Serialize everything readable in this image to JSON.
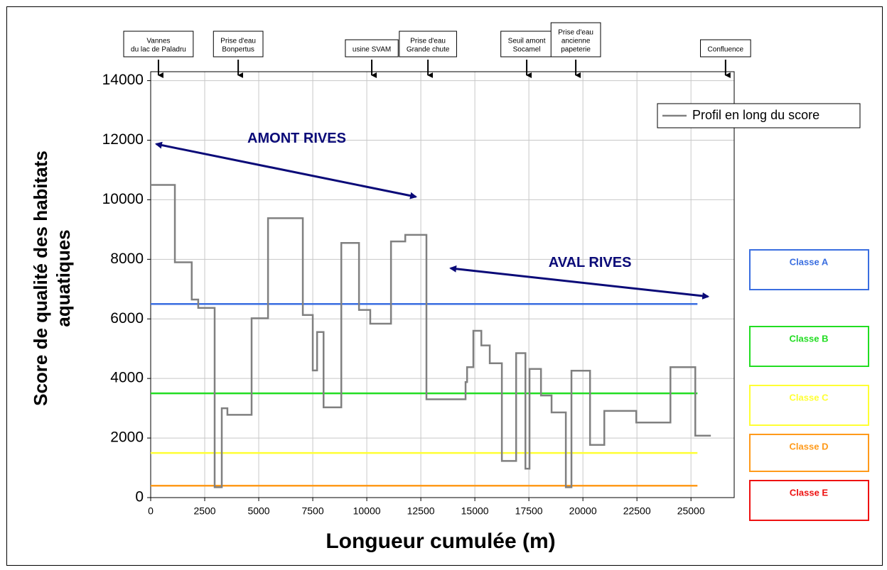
{
  "chart_data": {
    "type": "step",
    "xlabel": "Longueur cumulée (m)",
    "ylabel": [
      "Score de qualité des habitats",
      "aquatiques"
    ],
    "xlim": [
      0,
      27000
    ],
    "ylim": [
      0,
      14300
    ],
    "xticks": [
      0,
      2500,
      5000,
      7500,
      10000,
      12500,
      15000,
      17500,
      20000,
      22500,
      25000
    ],
    "yticks": [
      0,
      2000,
      4000,
      6000,
      8000,
      10000,
      12000,
      14000
    ],
    "grid": true,
    "legend": "upper right",
    "series": [
      {
        "name": "Profil en long du score",
        "color": "#808080",
        "x": [
          0,
          1120,
          1900,
          2200,
          2960,
          3290,
          3550,
          4670,
          5430,
          7040,
          7500,
          7700,
          8000,
          8820,
          9640,
          10160,
          11120,
          11780,
          12760,
          14570,
          14640,
          14930,
          15300,
          15690,
          16250,
          16910,
          17340,
          17530,
          18060,
          18550,
          19210,
          19470,
          20330,
          20990,
          22470,
          24050,
          25200,
          25920
        ],
        "values": [
          10500,
          7900,
          6650,
          6370,
          350,
          3000,
          2780,
          6020,
          9380,
          6130,
          4270,
          5560,
          3030,
          8550,
          6300,
          5840,
          8600,
          8820,
          3300,
          3880,
          4380,
          5600,
          5110,
          4510,
          1230,
          4850,
          970,
          4320,
          3430,
          2860,
          350,
          4260,
          1770,
          2910,
          2520,
          4380,
          2080,
          2080
        ]
      }
    ],
    "class_line_xlim": [
      0,
      25300
    ],
    "classes": [
      {
        "name": "Classe A",
        "value": 6500,
        "color": "#3a6ee0"
      },
      {
        "name": "Classe B",
        "value": 3500,
        "color": "#22dd22"
      },
      {
        "name": "Classe C",
        "value": 1500,
        "color": "#ffff33"
      },
      {
        "name": "Classe D",
        "value": 400,
        "color": "#ff9a1a"
      },
      {
        "name": "Classe E",
        "color": "#ee1111"
      }
    ],
    "sites": [
      {
        "lines": [
          "Vannes",
          "du lac de Paladru"
        ],
        "x": 360
      },
      {
        "lines": [
          "Prise d'eau",
          "Bonpertus"
        ],
        "x": 4050
      },
      {
        "lines": [
          "usine SVAM"
        ],
        "x": 10230
      },
      {
        "lines": [
          "Prise d'eau",
          "Grande chute"
        ],
        "x": 12830
      },
      {
        "lines": [
          "Seuil amont",
          "Socamel"
        ],
        "x": 17400
      },
      {
        "lines": [
          "Prise d'eau",
          "ancienne",
          "papeterie"
        ],
        "x": 19670
      },
      {
        "lines": [
          "Confluence"
        ],
        "x": 26600
      }
    ],
    "arrows": [
      {
        "label": "AMONT RIVES",
        "from": [
          260,
          11870
        ],
        "to": [
          12270,
          10100
        ],
        "color": "#0a0a78"
      },
      {
        "label": "AVAL RIVES",
        "from": [
          13880,
          7700
        ],
        "to": [
          25790,
          6750
        ],
        "color": "#0a0a78"
      }
    ]
  }
}
